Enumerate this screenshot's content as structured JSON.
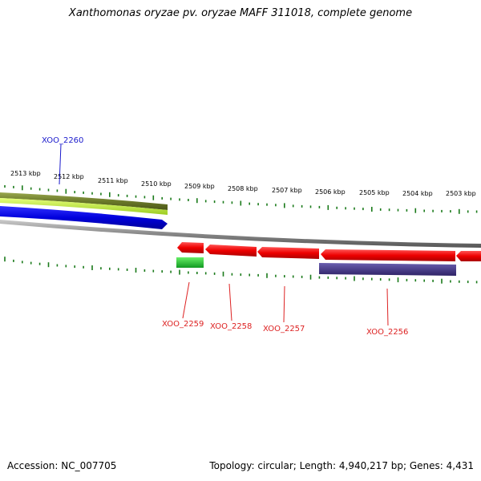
{
  "title": "Xanthomonas oryzae pv. oryzae MAFF 311018, complete genome",
  "footer": {
    "accession": "Accession: NC_007705",
    "summary": "Topology: circular; Length: 4,940,217 bp; Genes: 4,431"
  },
  "ruler": {
    "labels": [
      "2513 kbp",
      "2512 kbp",
      "2511 kbp",
      "2510 kbp",
      "2509 kbp",
      "2508 kbp",
      "2507 kbp",
      "2506 kbp",
      "2505 kbp",
      "2504 kbp",
      "2503 kbp"
    ]
  },
  "genes": {
    "forward": [
      {
        "name": "XOO_2260",
        "color": "#1a1acc"
      }
    ],
    "reverse": [
      {
        "name": "XOO_2259",
        "color": "#dd2222"
      },
      {
        "name": "XOO_2258",
        "color": "#dd2222"
      },
      {
        "name": "XOO_2257",
        "color": "#dd2222"
      },
      {
        "name": "XOO_2256",
        "color": "#dd2222"
      }
    ]
  },
  "colors": {
    "tick": "#1a7a1a",
    "backbone": "#888888",
    "forward_cds": "#0a0adf",
    "reverse_cds": "#ee1111",
    "rna_green": "#22bb33",
    "olive_track": "#6b7a2a",
    "lime_track": "#aadd33",
    "purple_track": "#4a3d8f"
  }
}
